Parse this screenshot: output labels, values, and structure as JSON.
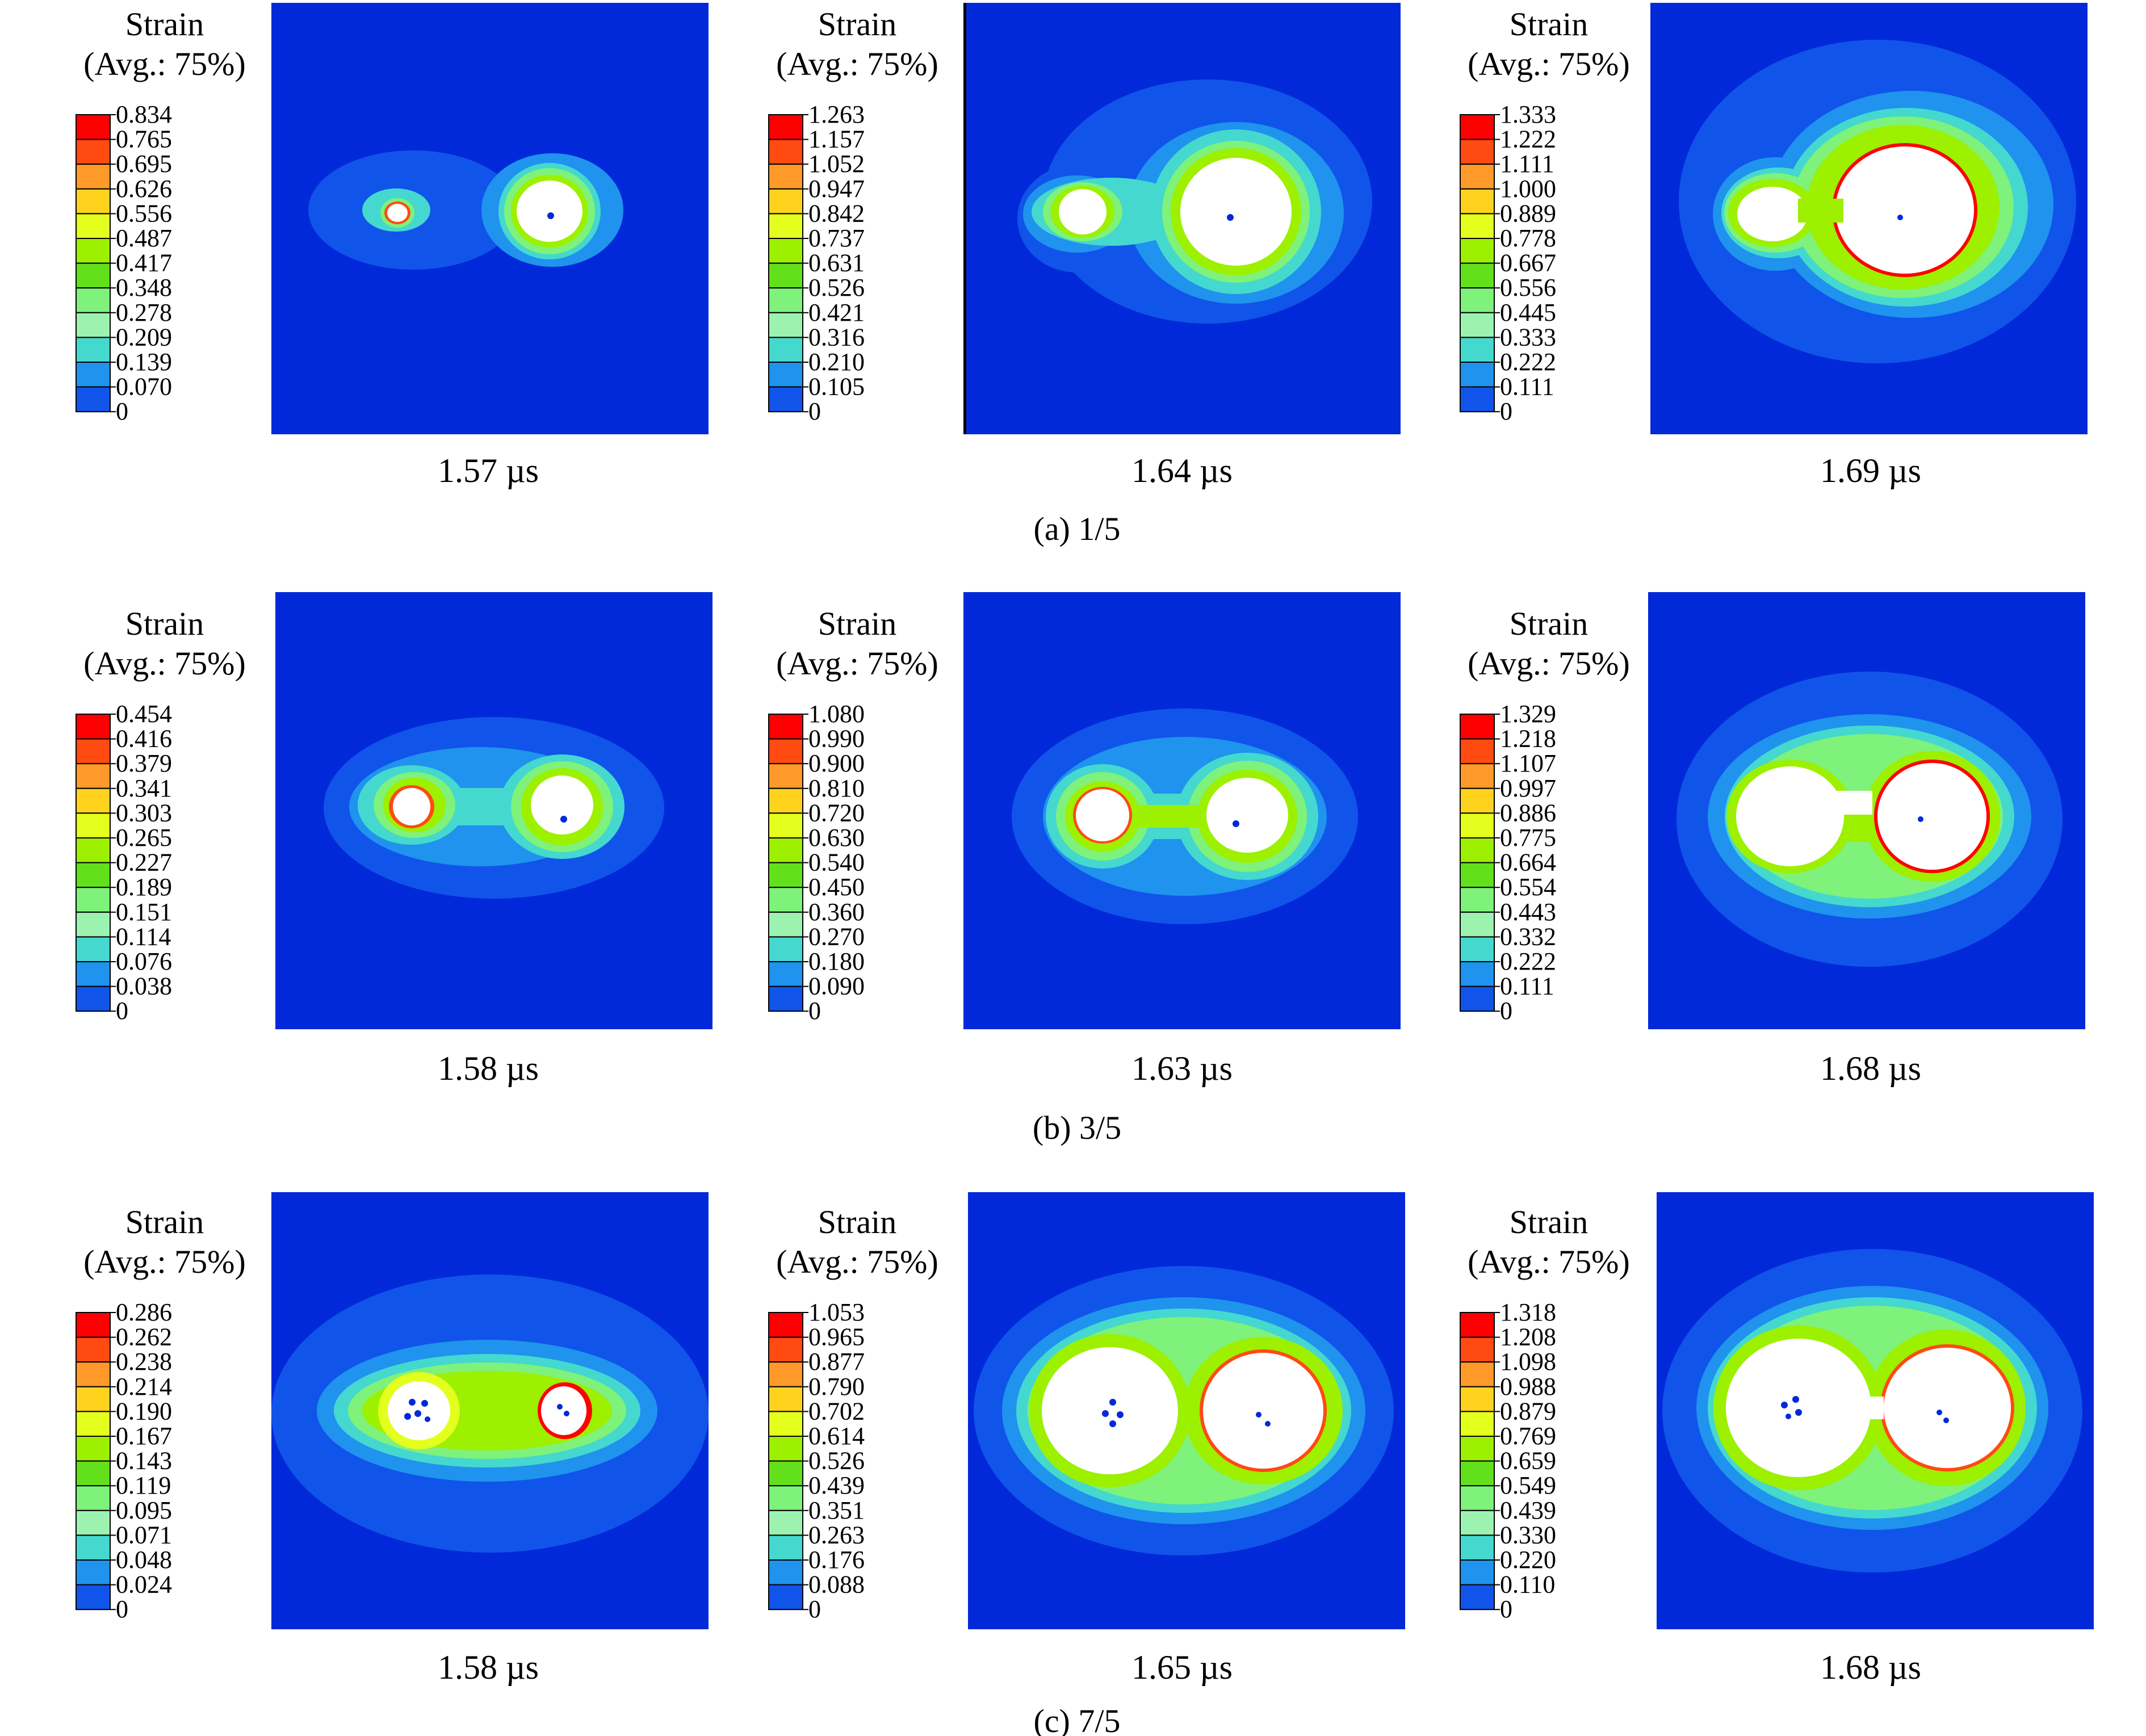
{
  "legend_title_line1": "Strain",
  "legend_title_line2": "(Avg.: 75%)",
  "legend_colors": [
    "#ff0000",
    "#ff4a12",
    "#ff9a2a",
    "#ffd21e",
    "#e4ff1e",
    "#9cf000",
    "#62e01c",
    "#7ef27a",
    "#9cf3b0",
    "#45d8cf",
    "#1f93ee",
    "#1154ea"
  ],
  "field_background": "#0229d9",
  "rows": [
    {
      "caption": "(a) 1/5",
      "panels": [
        {
          "time": "1.57 µs",
          "ticks": [
            "0.834",
            "0.765",
            "0.695",
            "0.626",
            "0.556",
            "0.487",
            "0.417",
            "0.348",
            "0.278",
            "0.209",
            "0.139",
            "0.070",
            "0"
          ]
        },
        {
          "time": "1.64 µs",
          "ticks": [
            "1.263",
            "1.157",
            "1.052",
            "0.947",
            "0.842",
            "0.737",
            "0.631",
            "0.526",
            "0.421",
            "0.316",
            "0.210",
            "0.105",
            "0"
          ]
        },
        {
          "time": "1.69 µs",
          "ticks": [
            "1.333",
            "1.222",
            "1.111",
            "1.000",
            "0.889",
            "0.778",
            "0.667",
            "0.556",
            "0.445",
            "0.333",
            "0.222",
            "0.111",
            "0"
          ]
        }
      ]
    },
    {
      "caption": "(b) 3/5",
      "panels": [
        {
          "time": "1.58 µs",
          "ticks": [
            "0.454",
            "0.416",
            "0.379",
            "0.341",
            "0.303",
            "0.265",
            "0.227",
            "0.189",
            "0.151",
            "0.114",
            "0.076",
            "0.038",
            "0"
          ]
        },
        {
          "time": "1.63 µs",
          "ticks": [
            "1.080",
            "0.990",
            "0.900",
            "0.810",
            "0.720",
            "0.630",
            "0.540",
            "0.450",
            "0.360",
            "0.270",
            "0.180",
            "0.090",
            "0"
          ]
        },
        {
          "time": "1.68 µs",
          "ticks": [
            "1.329",
            "1.218",
            "1.107",
            "0.997",
            "0.886",
            "0.775",
            "0.664",
            "0.554",
            "0.443",
            "0.332",
            "0.222",
            "0.111",
            "0"
          ]
        }
      ]
    },
    {
      "caption": "(c) 7/5",
      "panels": [
        {
          "time": "1.58 µs",
          "ticks": [
            "0.286",
            "0.262",
            "0.238",
            "0.214",
            "0.190",
            "0.167",
            "0.143",
            "0.119",
            "0.095",
            "0.071",
            "0.048",
            "0.024",
            "0"
          ]
        },
        {
          "time": "1.65 µs",
          "ticks": [
            "1.053",
            "0.965",
            "0.877",
            "0.790",
            "0.702",
            "0.614",
            "0.526",
            "0.439",
            "0.351",
            "0.263",
            "0.176",
            "0.088",
            "0"
          ]
        },
        {
          "time": "1.68 µs",
          "ticks": [
            "1.318",
            "1.208",
            "1.098",
            "0.988",
            "0.879",
            "0.769",
            "0.659",
            "0.549",
            "0.439",
            "0.330",
            "0.220",
            "0.110",
            "0"
          ]
        }
      ]
    }
  ]
}
